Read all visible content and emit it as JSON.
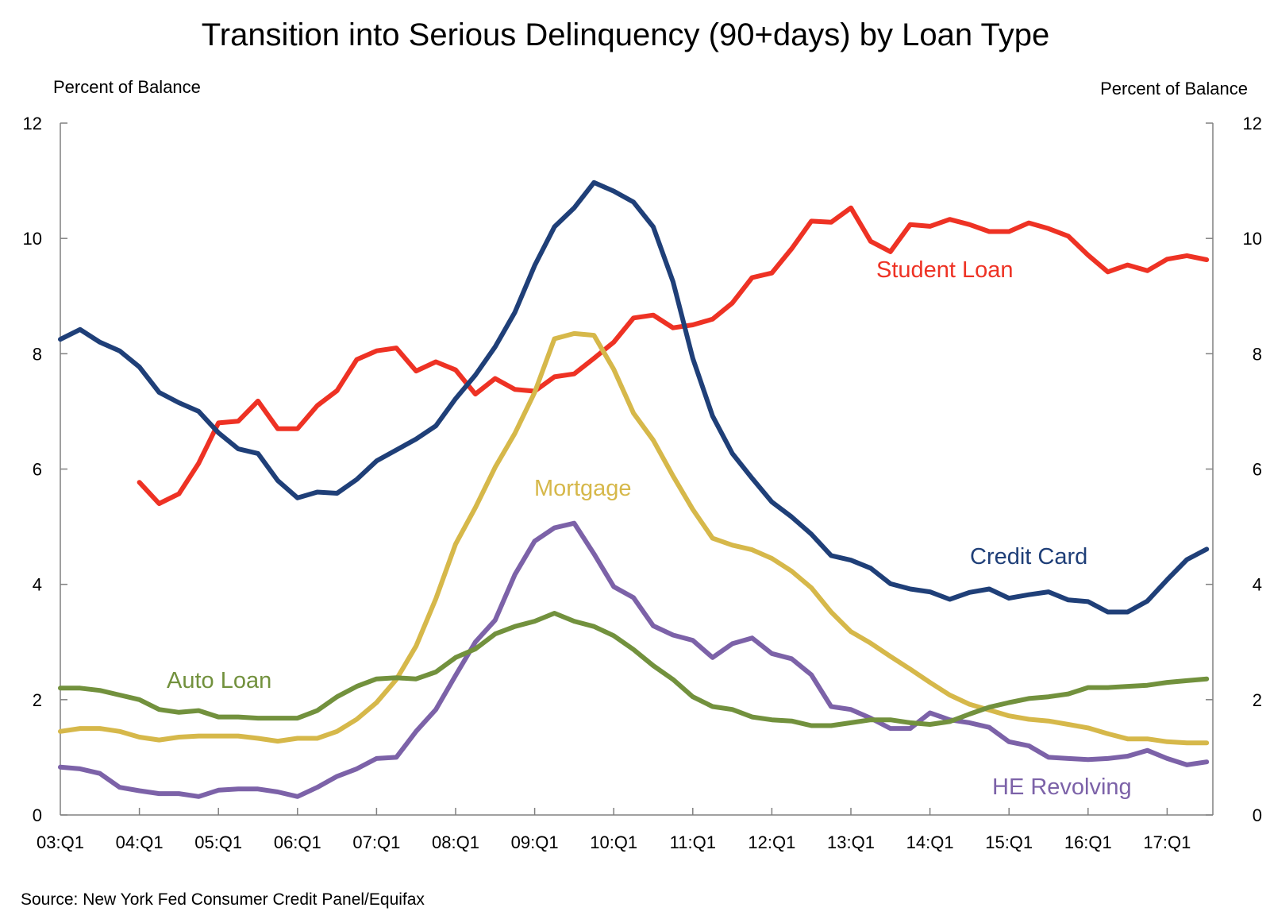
{
  "chart_data": {
    "type": "line",
    "title": "Transition into Serious Delinquency (90+days) by Loan Type",
    "y_label_left": "Percent of Balance",
    "y_label_right": "Percent of Balance",
    "source": "Source: New York Fed Consumer Credit Panel/Equifax",
    "ylim": [
      0,
      12
    ],
    "y_ticks": [
      "0",
      "2",
      "4",
      "6",
      "8",
      "10",
      "12"
    ],
    "x_ticks": [
      "03:Q1",
      "04:Q1",
      "05:Q1",
      "06:Q1",
      "07:Q1",
      "08:Q1",
      "09:Q1",
      "10:Q1",
      "11:Q1",
      "12:Q1",
      "13:Q1",
      "14:Q1",
      "15:Q1",
      "16:Q1",
      "17:Q1"
    ],
    "x_start": "2003:Q1",
    "x_end": "2017:Q3",
    "grid": false,
    "series": [
      {
        "name": "Student Loan",
        "color": "#ee3224",
        "start_index": 4,
        "values": [
          5.77,
          5.4,
          5.57,
          6.1,
          6.8,
          6.83,
          7.18,
          6.7,
          6.7,
          7.1,
          7.36,
          7.9,
          8.05,
          8.1,
          7.7,
          7.86,
          7.72,
          7.3,
          7.57,
          7.38,
          7.35,
          7.6,
          7.65,
          7.92,
          8.2,
          8.62,
          8.67,
          8.45,
          8.5,
          8.6,
          8.88,
          9.32,
          9.4,
          9.82,
          10.3,
          10.28,
          10.53,
          9.95,
          9.77,
          10.24,
          10.21,
          10.33,
          10.24,
          10.12,
          10.12,
          10.27,
          10.17,
          10.04,
          9.71,
          9.42,
          9.54,
          9.44,
          9.64,
          9.7,
          9.63
        ]
      },
      {
        "name": "Credit Card",
        "color": "#1f3f78",
        "start_index": 0,
        "values": [
          8.25,
          8.42,
          8.2,
          8.05,
          7.77,
          7.33,
          7.15,
          7.0,
          6.63,
          6.35,
          6.27,
          5.8,
          5.5,
          5.6,
          5.58,
          5.82,
          6.14,
          6.33,
          6.52,
          6.75,
          7.22,
          7.63,
          8.12,
          8.72,
          9.53,
          10.2,
          10.53,
          10.97,
          10.82,
          10.63,
          10.2,
          9.25,
          7.92,
          6.92,
          6.27,
          5.84,
          5.43,
          5.17,
          4.87,
          4.5,
          4.42,
          4.28,
          4.01,
          3.92,
          3.87,
          3.74,
          3.86,
          3.92,
          3.76,
          3.82,
          3.87,
          3.73,
          3.7,
          3.52,
          3.52,
          3.71,
          4.08,
          4.43,
          4.61
        ]
      },
      {
        "name": "Mortgage",
        "color": "#d6b84a",
        "start_index": 0,
        "values": [
          1.45,
          1.5,
          1.5,
          1.45,
          1.35,
          1.3,
          1.35,
          1.37,
          1.37,
          1.37,
          1.33,
          1.28,
          1.33,
          1.33,
          1.45,
          1.66,
          1.95,
          2.35,
          2.93,
          3.75,
          4.7,
          5.33,
          6.03,
          6.62,
          7.33,
          8.26,
          8.35,
          8.32,
          7.73,
          6.97,
          6.5,
          5.88,
          5.3,
          4.8,
          4.68,
          4.6,
          4.45,
          4.23,
          3.94,
          3.52,
          3.18,
          2.98,
          2.75,
          2.53,
          2.3,
          2.08,
          1.92,
          1.82,
          1.72,
          1.66,
          1.63,
          1.57,
          1.51,
          1.41,
          1.32,
          1.32,
          1.27,
          1.25,
          1.25
        ]
      },
      {
        "name": "HE Revolving",
        "color": "#7c62a8",
        "start_index": 0,
        "values": [
          0.83,
          0.8,
          0.72,
          0.48,
          0.42,
          0.37,
          0.37,
          0.32,
          0.43,
          0.45,
          0.45,
          0.4,
          0.32,
          0.48,
          0.67,
          0.8,
          0.98,
          1.0,
          1.45,
          1.83,
          2.42,
          3.0,
          3.38,
          4.17,
          4.75,
          4.98,
          5.06,
          4.53,
          3.96,
          3.77,
          3.28,
          3.12,
          3.03,
          2.73,
          2.97,
          3.07,
          2.8,
          2.71,
          2.43,
          1.88,
          1.83,
          1.68,
          1.5,
          1.5,
          1.77,
          1.65,
          1.6,
          1.52,
          1.27,
          1.2,
          1.0,
          0.98,
          0.96,
          0.98,
          1.02,
          1.12,
          0.98,
          0.87,
          0.92
        ]
      },
      {
        "name": "Auto Loan",
        "color": "#72913d",
        "start_index": 0,
        "values": [
          2.2,
          2.2,
          2.16,
          2.08,
          2.0,
          1.83,
          1.78,
          1.81,
          1.7,
          1.7,
          1.68,
          1.68,
          1.68,
          1.81,
          2.05,
          2.23,
          2.36,
          2.38,
          2.36,
          2.48,
          2.73,
          2.88,
          3.14,
          3.27,
          3.36,
          3.5,
          3.36,
          3.27,
          3.11,
          2.87,
          2.59,
          2.35,
          2.05,
          1.88,
          1.83,
          1.7,
          1.65,
          1.63,
          1.55,
          1.55,
          1.6,
          1.65,
          1.65,
          1.6,
          1.57,
          1.62,
          1.75,
          1.87,
          1.95,
          2.02,
          2.05,
          2.1,
          2.21,
          2.21,
          2.23,
          2.25,
          2.3,
          2.33,
          2.36
        ]
      }
    ]
  }
}
